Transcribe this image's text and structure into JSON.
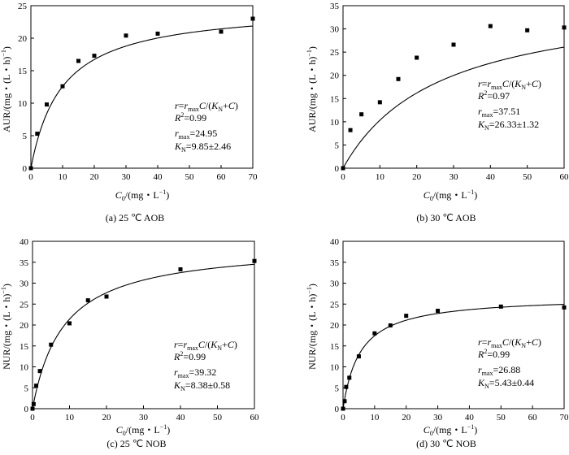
{
  "chart_data": [
    {
      "type": "scatter",
      "caption": "(a) 25 ℃ AOB",
      "xlabel": "C₀/(mg・L⁻¹)",
      "ylabel": "AUR/(mg・(L・h)⁻¹)",
      "xlim": [
        0,
        70
      ],
      "ylim": [
        0,
        25
      ],
      "xticks": [
        0,
        10,
        20,
        30,
        40,
        50,
        60,
        70
      ],
      "yticks": [
        0,
        5,
        10,
        15,
        20,
        25
      ],
      "points": [
        [
          0,
          0
        ],
        [
          2,
          5.3
        ],
        [
          5,
          9.8
        ],
        [
          10,
          12.6
        ],
        [
          15,
          16.5
        ],
        [
          20,
          17.3
        ],
        [
          30,
          20.4
        ],
        [
          40,
          20.7
        ],
        [
          60,
          21
        ],
        [
          70,
          23
        ]
      ],
      "fit": {
        "model": "Michaelis-Menten",
        "rmax": 24.95,
        "KN": 9.85
      },
      "annotation": {
        "equation": "r=rmaxC/(KN+C)",
        "r2": "R²=0.99",
        "rmax": "rmax=24.95",
        "kn": "KN=9.85±2.46"
      }
    },
    {
      "type": "scatter",
      "caption": "(b) 30 ℃ AOB",
      "xlabel": "C₀/(mg・L⁻¹)",
      "ylabel": "AUR/(mg・(L・h)⁻¹)",
      "xlim": [
        0,
        60
      ],
      "ylim": [
        0,
        35
      ],
      "xticks": [
        0,
        10,
        20,
        30,
        40,
        50,
        60
      ],
      "yticks": [
        0,
        5,
        10,
        15,
        20,
        25,
        30,
        35
      ],
      "points": [
        [
          0,
          0
        ],
        [
          2,
          8.2
        ],
        [
          5,
          11.6
        ],
        [
          10,
          14.2
        ],
        [
          15,
          19.2
        ],
        [
          20,
          23.8
        ],
        [
          30,
          26.6
        ],
        [
          40,
          30.6
        ],
        [
          50,
          29.7
        ],
        [
          60,
          30.3
        ]
      ],
      "fit": {
        "model": "Michaelis-Menten",
        "rmax": 37.51,
        "KN": 26.33
      },
      "annotation": {
        "equation": "r=rmaxC/(KN+C)",
        "r2": "R²=0.97",
        "rmax": "rmax=37.51",
        "kn": "KN=26.33±1.32"
      }
    },
    {
      "type": "scatter",
      "caption": "(c) 25 ℃ NOB",
      "xlabel": "C₀/(mg・L⁻¹)",
      "ylabel": "NUR/(mg・(L・h)⁻¹)",
      "xlim": [
        0,
        60
      ],
      "ylim": [
        0,
        40
      ],
      "xticks": [
        0,
        10,
        20,
        30,
        40,
        50,
        60
      ],
      "yticks": [
        0,
        5,
        10,
        15,
        20,
        25,
        30,
        35,
        40
      ],
      "points": [
        [
          0,
          0
        ],
        [
          0.3,
          1.1
        ],
        [
          1,
          5.5
        ],
        [
          2,
          9
        ],
        [
          5,
          15.3
        ],
        [
          10,
          20.4
        ],
        [
          15,
          25.9
        ],
        [
          20,
          26.8
        ],
        [
          40,
          33.3
        ],
        [
          60,
          35.3
        ]
      ],
      "fit": {
        "model": "Michaelis-Menten",
        "rmax": 39.32,
        "KN": 8.38
      },
      "annotation": {
        "equation": "r=rmaxC/(KN+C)",
        "r2": "R²=0.99",
        "rmax": "rmax=39.32",
        "kn": "KN=8.38±0.58"
      }
    },
    {
      "type": "scatter",
      "caption": "(d) 30 ℃ NOB",
      "xlabel": "C₀/(mg・L⁻¹)",
      "ylabel": "NUR/(mg・(L・h)⁻¹)",
      "xlim": [
        0,
        70
      ],
      "ylim": [
        0,
        40
      ],
      "xticks": [
        0,
        10,
        20,
        30,
        40,
        50,
        60,
        70
      ],
      "yticks": [
        0,
        5,
        10,
        15,
        20,
        25,
        30,
        35,
        40
      ],
      "points": [
        [
          0,
          0
        ],
        [
          0.5,
          1.8
        ],
        [
          1,
          5.2
        ],
        [
          2,
          7.4
        ],
        [
          5,
          12.5
        ],
        [
          10,
          18
        ],
        [
          15,
          19.9
        ],
        [
          20,
          22.2
        ],
        [
          30,
          23.4
        ],
        [
          50,
          24.4
        ],
        [
          70,
          24.2
        ]
      ],
      "fit": {
        "model": "Michaelis-Menten",
        "rmax": 26.88,
        "KN": 5.43
      },
      "annotation": {
        "equation": "r=rmaxC/(KN+C)",
        "r2": "R²=0.99",
        "rmax": "rmax=26.88",
        "kn": "KN=5.43±0.44"
      }
    }
  ]
}
